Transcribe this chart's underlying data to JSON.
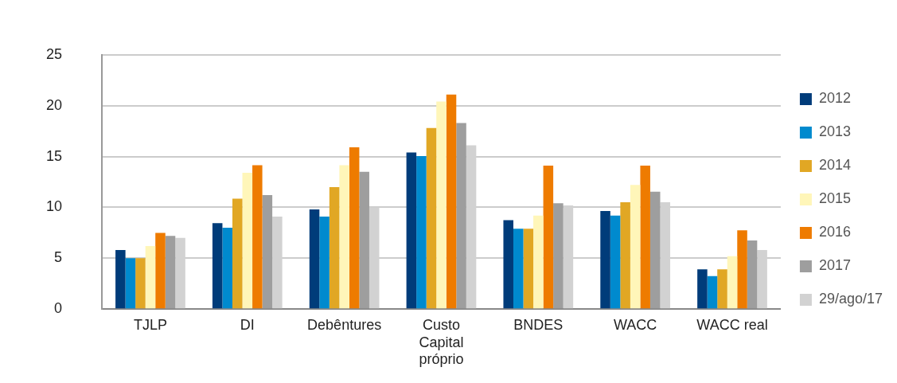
{
  "chart_data": {
    "type": "bar",
    "categories": [
      "TJLP",
      "DI",
      "Debêntures",
      "Custo\nCapital\npróprio",
      "BNDES",
      "WACC",
      "WACC real"
    ],
    "series": [
      {
        "name": "2012",
        "color": "#003c7a",
        "values": [
          5.8,
          8.45,
          9.8,
          15.4,
          8.75,
          9.65,
          3.9
        ]
      },
      {
        "name": "2013",
        "color": "#008ace",
        "values": [
          5.0,
          8.0,
          9.1,
          15.05,
          7.9,
          9.2,
          3.25
        ]
      },
      {
        "name": "2014",
        "color": "#e1a724",
        "values": [
          5.0,
          10.85,
          12.0,
          17.8,
          7.9,
          10.5,
          3.9
        ]
      },
      {
        "name": "2015",
        "color": "#fff6b9",
        "values": [
          6.2,
          13.4,
          14.15,
          20.4,
          9.2,
          12.2,
          5.2
        ]
      },
      {
        "name": "2016",
        "color": "#ee7b00",
        "values": [
          7.5,
          14.15,
          15.9,
          21.1,
          14.1,
          14.1,
          7.75
        ]
      },
      {
        "name": "2017",
        "color": "#9e9e9e",
        "values": [
          7.2,
          11.2,
          13.5,
          18.3,
          10.4,
          11.55,
          6.75
        ]
      },
      {
        "name": "29/ago/17",
        "color": "#d2d2d2",
        "values": [
          7.0,
          9.1,
          10.0,
          16.1,
          10.2,
          10.5,
          5.8
        ]
      }
    ],
    "ylim": [
      0,
      25
    ],
    "yticks": [
      0,
      5,
      10,
      15,
      20,
      25
    ],
    "grid": "y",
    "legend": "right"
  }
}
